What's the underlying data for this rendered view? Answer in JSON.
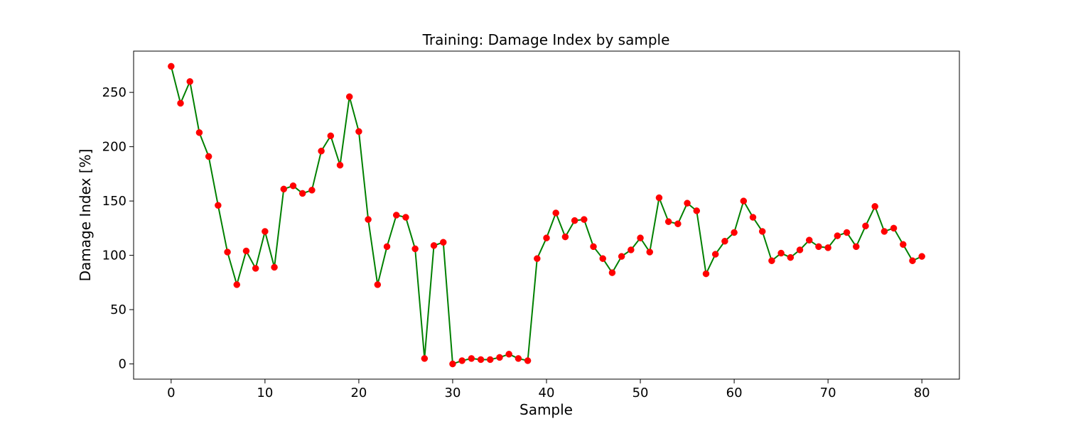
{
  "chart_data": {
    "type": "line",
    "title": "Training: Damage Index by sample",
    "xlabel": "Sample",
    "ylabel": "Damage Index [%]",
    "xlim": [
      -4,
      84
    ],
    "ylim": [
      -14,
      288
    ],
    "xticks": [
      0,
      10,
      20,
      30,
      40,
      50,
      60,
      70,
      80
    ],
    "yticks": [
      0,
      50,
      100,
      150,
      200,
      250
    ],
    "grid": false,
    "line_color": "#008000",
    "marker_color": "#ff0000",
    "series": [
      {
        "x": [
          0,
          1,
          2,
          3,
          4,
          5,
          6,
          7,
          8,
          9,
          10,
          11,
          12,
          13,
          14,
          15,
          16,
          17,
          18,
          19,
          20,
          21,
          22,
          23,
          24,
          25,
          26,
          27,
          28,
          29,
          30,
          31,
          32,
          33,
          34,
          35,
          36,
          37,
          38,
          39,
          40,
          41,
          42,
          43,
          44,
          45,
          46,
          47,
          48,
          49,
          50,
          51,
          52,
          53,
          54,
          55,
          56,
          57,
          58,
          59,
          60,
          61,
          62,
          63,
          64,
          65,
          66,
          67,
          68,
          69,
          70,
          71,
          72,
          73,
          74,
          75,
          76,
          77,
          78,
          79,
          80
        ],
        "values": [
          274,
          240,
          260,
          213,
          191,
          146,
          103,
          73,
          104,
          88,
          122,
          89,
          161,
          164,
          157,
          160,
          196,
          210,
          183,
          246,
          214,
          133,
          73,
          108,
          137,
          135,
          106,
          5,
          109,
          112,
          0,
          3,
          5,
          4,
          4,
          6,
          9,
          5,
          3,
          97,
          116,
          139,
          117,
          132,
          133,
          108,
          97,
          84,
          99,
          105,
          116,
          103,
          153,
          131,
          129,
          148,
          141,
          83,
          101,
          113,
          121,
          150,
          135,
          122,
          95,
          102,
          98,
          105,
          114,
          108,
          107,
          118,
          121,
          108,
          127,
          145,
          122,
          125,
          110,
          95,
          99
        ]
      }
    ]
  }
}
